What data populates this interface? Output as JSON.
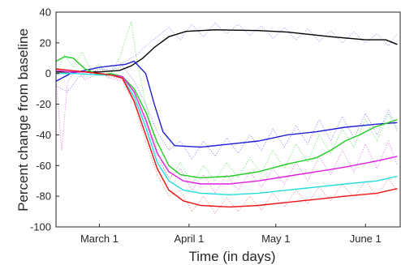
{
  "chart_data": {
    "type": "line",
    "title": "",
    "xlabel": "Time (in days)",
    "ylabel": "Percent change from baseline",
    "ylim": [
      -100,
      40
    ],
    "xlim": [
      "2020-02-15",
      "2020-06-13"
    ],
    "x_ticks": [
      {
        "date": "2020-03-01",
        "label": "March 1"
      },
      {
        "date": "2020-04-01",
        "label": "April 1"
      },
      {
        "date": "2020-05-01",
        "label": "May 1"
      },
      {
        "date": "2020-06-01",
        "label": "June 1"
      }
    ],
    "y_ticks": [
      40,
      20,
      0,
      -20,
      -40,
      -60,
      -80,
      -100
    ],
    "grid": false,
    "legend": "none",
    "series": [
      {
        "color": "#000000",
        "style": "solid",
        "points": [
          [
            "2020-02-15",
            1
          ],
          [
            "2020-02-22",
            1
          ],
          [
            "2020-03-01",
            1
          ],
          [
            "2020-03-08",
            2
          ],
          [
            "2020-03-12",
            5
          ],
          [
            "2020-03-16",
            10
          ],
          [
            "2020-03-20",
            17
          ],
          [
            "2020-03-25",
            24
          ],
          [
            "2020-03-31",
            27.5
          ],
          [
            "2020-04-10",
            28.5
          ],
          [
            "2020-04-25",
            28
          ],
          [
            "2020-05-05",
            27
          ],
          [
            "2020-05-20",
            24
          ],
          [
            "2020-06-01",
            22
          ],
          [
            "2020-06-08",
            22
          ],
          [
            "2020-06-12",
            19
          ]
        ]
      },
      {
        "color": "#1f1fd8",
        "style": "solid",
        "points": [
          [
            "2020-02-15",
            -5
          ],
          [
            "2020-02-20",
            0
          ],
          [
            "2020-02-25",
            2
          ],
          [
            "2020-03-01",
            4
          ],
          [
            "2020-03-05",
            5
          ],
          [
            "2020-03-10",
            6
          ],
          [
            "2020-03-13",
            8
          ],
          [
            "2020-03-17",
            0
          ],
          [
            "2020-03-20",
            -20
          ],
          [
            "2020-03-23",
            -38
          ],
          [
            "2020-03-27",
            -47
          ],
          [
            "2020-04-05",
            -48
          ],
          [
            "2020-04-15",
            -46
          ],
          [
            "2020-04-25",
            -44
          ],
          [
            "2020-05-05",
            -40
          ],
          [
            "2020-05-15",
            -38
          ],
          [
            "2020-05-25",
            -35
          ],
          [
            "2020-06-05",
            -33
          ],
          [
            "2020-06-12",
            -32
          ]
        ]
      },
      {
        "color": "#22cc22",
        "style": "solid",
        "points": [
          [
            "2020-02-15",
            8
          ],
          [
            "2020-02-18",
            11
          ],
          [
            "2020-02-21",
            10
          ],
          [
            "2020-02-25",
            3
          ],
          [
            "2020-03-01",
            -1
          ],
          [
            "2020-03-05",
            0
          ],
          [
            "2020-03-09",
            -2
          ],
          [
            "2020-03-13",
            -10
          ],
          [
            "2020-03-17",
            -25
          ],
          [
            "2020-03-21",
            -45
          ],
          [
            "2020-03-25",
            -60
          ],
          [
            "2020-03-29",
            -66
          ],
          [
            "2020-04-05",
            -68
          ],
          [
            "2020-04-15",
            -67
          ],
          [
            "2020-04-25",
            -64
          ],
          [
            "2020-05-05",
            -59
          ],
          [
            "2020-05-15",
            -55
          ],
          [
            "2020-05-20",
            -50
          ],
          [
            "2020-05-25",
            -44
          ],
          [
            "2020-05-30",
            -40
          ],
          [
            "2020-06-04",
            -35
          ],
          [
            "2020-06-09",
            -32
          ],
          [
            "2020-06-12",
            -30
          ]
        ]
      },
      {
        "color": "#e020e0",
        "style": "solid",
        "points": [
          [
            "2020-02-15",
            2
          ],
          [
            "2020-02-20",
            1
          ],
          [
            "2020-02-25",
            1
          ],
          [
            "2020-03-01",
            0
          ],
          [
            "2020-03-05",
            -1
          ],
          [
            "2020-03-09",
            -2
          ],
          [
            "2020-03-13",
            -12
          ],
          [
            "2020-03-17",
            -30
          ],
          [
            "2020-03-21",
            -52
          ],
          [
            "2020-03-25",
            -64
          ],
          [
            "2020-03-30",
            -70
          ],
          [
            "2020-04-05",
            -72
          ],
          [
            "2020-04-15",
            -72
          ],
          [
            "2020-04-25",
            -70
          ],
          [
            "2020-05-05",
            -67
          ],
          [
            "2020-05-15",
            -64
          ],
          [
            "2020-05-25",
            -61
          ],
          [
            "2020-06-05",
            -57
          ],
          [
            "2020-06-12",
            -54
          ]
        ]
      },
      {
        "color": "#22dddd",
        "style": "solid",
        "points": [
          [
            "2020-02-15",
            0
          ],
          [
            "2020-02-22",
            0
          ],
          [
            "2020-03-01",
            -1
          ],
          [
            "2020-03-05",
            -1
          ],
          [
            "2020-03-09",
            -3
          ],
          [
            "2020-03-13",
            -15
          ],
          [
            "2020-03-17",
            -35
          ],
          [
            "2020-03-21",
            -58
          ],
          [
            "2020-03-25",
            -70
          ],
          [
            "2020-03-30",
            -76
          ],
          [
            "2020-04-05",
            -78
          ],
          [
            "2020-04-15",
            -79
          ],
          [
            "2020-04-25",
            -78
          ],
          [
            "2020-05-05",
            -76
          ],
          [
            "2020-05-15",
            -74
          ],
          [
            "2020-05-25",
            -72
          ],
          [
            "2020-06-05",
            -70
          ],
          [
            "2020-06-12",
            -67
          ]
        ]
      },
      {
        "color": "#ee1111",
        "style": "solid",
        "points": [
          [
            "2020-02-15",
            3
          ],
          [
            "2020-02-20",
            2
          ],
          [
            "2020-02-25",
            1
          ],
          [
            "2020-03-01",
            0
          ],
          [
            "2020-03-05",
            -1
          ],
          [
            "2020-03-09",
            -3
          ],
          [
            "2020-03-13",
            -18
          ],
          [
            "2020-03-17",
            -40
          ],
          [
            "2020-03-21",
            -62
          ],
          [
            "2020-03-25",
            -76
          ],
          [
            "2020-03-30",
            -83
          ],
          [
            "2020-04-05",
            -86
          ],
          [
            "2020-04-15",
            -87
          ],
          [
            "2020-04-25",
            -86
          ],
          [
            "2020-05-05",
            -84
          ],
          [
            "2020-05-15",
            -82
          ],
          [
            "2020-05-25",
            -80
          ],
          [
            "2020-06-05",
            -78
          ],
          [
            "2020-06-12",
            -75
          ]
        ]
      },
      {
        "color": "#8888ee",
        "style": "dotted",
        "points": [
          [
            "2020-02-15",
            0
          ],
          [
            "2020-02-25",
            1
          ],
          [
            "2020-03-05",
            3
          ],
          [
            "2020-03-10",
            8
          ],
          [
            "2020-03-14",
            12
          ],
          [
            "2020-03-17",
            18
          ],
          [
            "2020-03-21",
            24
          ],
          [
            "2020-03-25",
            30
          ],
          [
            "2020-03-29",
            22
          ],
          [
            "2020-04-02",
            32
          ],
          [
            "2020-04-06",
            24
          ],
          [
            "2020-04-10",
            33
          ],
          [
            "2020-04-14",
            26
          ],
          [
            "2020-04-18",
            32
          ],
          [
            "2020-04-22",
            25
          ],
          [
            "2020-04-26",
            31
          ],
          [
            "2020-04-30",
            23
          ],
          [
            "2020-05-04",
            30
          ],
          [
            "2020-05-08",
            22
          ],
          [
            "2020-05-12",
            29
          ],
          [
            "2020-05-16",
            21
          ],
          [
            "2020-05-20",
            28
          ],
          [
            "2020-05-24",
            20
          ],
          [
            "2020-05-28",
            27
          ],
          [
            "2020-06-01",
            20
          ],
          [
            "2020-06-05",
            26
          ],
          [
            "2020-06-09",
            18
          ],
          [
            "2020-06-12",
            26
          ]
        ]
      },
      {
        "color": "#55dd55",
        "style": "dotted",
        "points": [
          [
            "2020-02-15",
            0
          ],
          [
            "2020-02-18",
            12
          ],
          [
            "2020-02-21",
            4
          ],
          [
            "2020-02-24",
            14
          ],
          [
            "2020-02-27",
            2
          ],
          [
            "2020-03-01",
            6
          ],
          [
            "2020-03-04",
            -3
          ],
          [
            "2020-03-08",
            10
          ],
          [
            "2020-03-12",
            34
          ],
          [
            "2020-03-14",
            8
          ],
          [
            "2020-03-17",
            -20
          ],
          [
            "2020-03-21",
            -50
          ],
          [
            "2020-03-25",
            -70
          ],
          [
            "2020-03-29",
            -58
          ],
          [
            "2020-04-02",
            -72
          ],
          [
            "2020-04-06",
            -60
          ],
          [
            "2020-04-10",
            -70
          ],
          [
            "2020-04-14",
            -58
          ],
          [
            "2020-04-18",
            -68
          ],
          [
            "2020-04-22",
            -55
          ],
          [
            "2020-04-26",
            -65
          ],
          [
            "2020-04-30",
            -50
          ],
          [
            "2020-05-04",
            -62
          ],
          [
            "2020-05-08",
            -46
          ],
          [
            "2020-05-12",
            -58
          ],
          [
            "2020-05-16",
            -40
          ],
          [
            "2020-05-20",
            -52
          ],
          [
            "2020-05-24",
            -36
          ],
          [
            "2020-05-28",
            -48
          ],
          [
            "2020-06-01",
            -30
          ],
          [
            "2020-06-05",
            -44
          ],
          [
            "2020-06-09",
            -26
          ],
          [
            "2020-06-12",
            -38
          ]
        ]
      },
      {
        "color": "#dd66dd",
        "style": "dotted",
        "points": [
          [
            "2020-02-15",
            -2
          ],
          [
            "2020-02-17",
            -50
          ],
          [
            "2020-02-19",
            -5
          ],
          [
            "2020-02-22",
            2
          ],
          [
            "2020-02-25",
            -4
          ],
          [
            "2020-03-01",
            0
          ],
          [
            "2020-03-05",
            -3
          ],
          [
            "2020-03-09",
            -5
          ],
          [
            "2020-03-13",
            -15
          ],
          [
            "2020-03-17",
            -32
          ],
          [
            "2020-03-21",
            -55
          ],
          [
            "2020-03-25",
            -68
          ],
          [
            "2020-03-29",
            -62
          ],
          [
            "2020-04-02",
            -76
          ],
          [
            "2020-04-06",
            -66
          ],
          [
            "2020-04-10",
            -78
          ],
          [
            "2020-04-14",
            -66
          ],
          [
            "2020-04-18",
            -76
          ],
          [
            "2020-04-22",
            -64
          ],
          [
            "2020-04-26",
            -74
          ],
          [
            "2020-04-30",
            -62
          ],
          [
            "2020-05-04",
            -72
          ],
          [
            "2020-05-08",
            -58
          ],
          [
            "2020-05-12",
            -70
          ],
          [
            "2020-05-16",
            -54
          ],
          [
            "2020-05-20",
            -66
          ],
          [
            "2020-05-24",
            -50
          ],
          [
            "2020-05-28",
            -64
          ],
          [
            "2020-06-01",
            -46
          ],
          [
            "2020-06-05",
            -62
          ],
          [
            "2020-06-09",
            -44
          ],
          [
            "2020-06-12",
            -60
          ]
        ]
      },
      {
        "color": "#ee7777",
        "style": "dotted",
        "points": [
          [
            "2020-02-15",
            0
          ],
          [
            "2020-02-22",
            2
          ],
          [
            "2020-03-01",
            0
          ],
          [
            "2020-03-05",
            -2
          ],
          [
            "2020-03-09",
            -4
          ],
          [
            "2020-03-13",
            -20
          ],
          [
            "2020-03-17",
            -44
          ],
          [
            "2020-03-21",
            -66
          ],
          [
            "2020-03-25",
            -80
          ],
          [
            "2020-03-29",
            -76
          ],
          [
            "2020-04-02",
            -90
          ],
          [
            "2020-04-06",
            -80
          ],
          [
            "2020-04-10",
            -91
          ],
          [
            "2020-04-14",
            -81
          ],
          [
            "2020-04-18",
            -90
          ],
          [
            "2020-04-22",
            -80
          ],
          [
            "2020-04-26",
            -89
          ],
          [
            "2020-04-30",
            -78
          ],
          [
            "2020-05-04",
            -87
          ],
          [
            "2020-05-08",
            -76
          ],
          [
            "2020-05-12",
            -85
          ],
          [
            "2020-05-16",
            -74
          ],
          [
            "2020-05-20",
            -83
          ],
          [
            "2020-05-24",
            -72
          ],
          [
            "2020-05-28",
            -81
          ],
          [
            "2020-06-01",
            -70
          ],
          [
            "2020-06-05",
            -80
          ],
          [
            "2020-06-09",
            -68
          ],
          [
            "2020-06-12",
            -77
          ]
        ]
      },
      {
        "color": "#7777ee",
        "style": "dotted",
        "points": [
          [
            "2020-02-15",
            -8
          ],
          [
            "2020-02-19",
            -12
          ],
          [
            "2020-02-23",
            -2
          ],
          [
            "2020-02-27",
            0
          ],
          [
            "2020-03-01",
            3
          ],
          [
            "2020-03-05",
            2
          ],
          [
            "2020-03-09",
            5
          ],
          [
            "2020-03-13",
            -5
          ],
          [
            "2020-03-17",
            -20
          ],
          [
            "2020-03-21",
            -38
          ],
          [
            "2020-03-25",
            -50
          ],
          [
            "2020-03-29",
            -44
          ],
          [
            "2020-04-02",
            -56
          ],
          [
            "2020-04-06",
            -44
          ],
          [
            "2020-04-10",
            -54
          ],
          [
            "2020-04-14",
            -42
          ],
          [
            "2020-04-18",
            -52
          ],
          [
            "2020-04-22",
            -40
          ],
          [
            "2020-04-26",
            -50
          ],
          [
            "2020-04-30",
            -36
          ],
          [
            "2020-05-04",
            -48
          ],
          [
            "2020-05-08",
            -34
          ],
          [
            "2020-05-12",
            -46
          ],
          [
            "2020-05-16",
            -30
          ],
          [
            "2020-05-20",
            -44
          ],
          [
            "2020-05-24",
            -28
          ],
          [
            "2020-05-28",
            -42
          ],
          [
            "2020-06-01",
            -26
          ],
          [
            "2020-06-05",
            -40
          ],
          [
            "2020-06-09",
            -24
          ],
          [
            "2020-06-12",
            -36
          ]
        ]
      }
    ]
  }
}
